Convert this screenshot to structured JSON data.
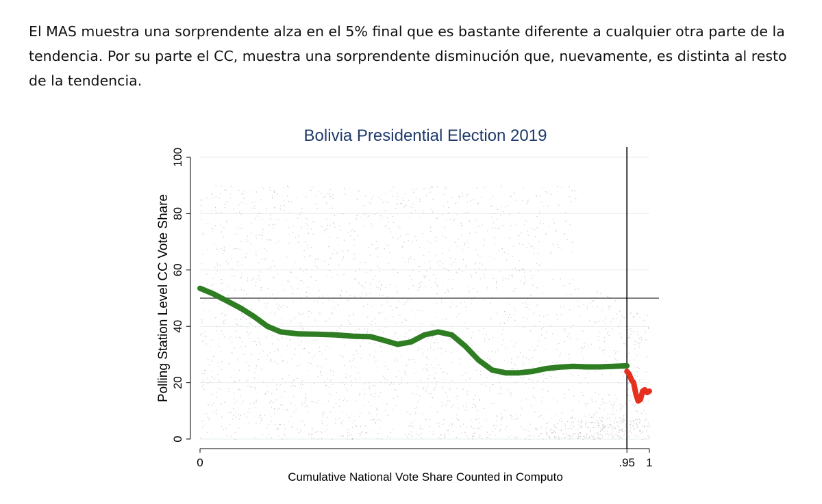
{
  "paragraph": "El MAS muestra una sorprendente alza en el 5% final que es bastante diferente a cualquier otra parte de la tendencia. Por su parte el CC, muestra una sorprendente disminución que, nuevamente, es distinta al resto de la tendencia.",
  "colors": {
    "title": "#1f3a6a",
    "scatter": "#9c9c9c",
    "trend_main": "#2e7d22",
    "trend_final": "#e53020",
    "reference_line": "#333333"
  },
  "chart_data": {
    "type": "scatter",
    "title": "Bolivia Presidential Election 2019",
    "xlabel": "Cumulative National Vote Share Counted in Computo",
    "ylabel": "Polling Station Level CC Vote Share",
    "xlim": [
      0,
      1
    ],
    "ylim": [
      0,
      100
    ],
    "x_ticks": [
      0,
      0.95,
      1
    ],
    "x_tick_labels": [
      "0",
      ".95",
      "1"
    ],
    "y_ticks": [
      0,
      20,
      40,
      60,
      80,
      100
    ],
    "y_tick_labels": [
      "0",
      "20",
      "40",
      "60",
      "80",
      "100"
    ],
    "grid": true,
    "reference_lines": {
      "horizontal_y": 50,
      "vertical_x": 0.95
    },
    "series": [
      {
        "x": [
          0,
          0.03,
          0.06,
          0.09,
          0.12,
          0.15,
          0.18,
          0.22,
          0.26,
          0.3,
          0.34,
          0.38,
          0.41,
          0.44,
          0.47,
          0.5,
          0.53,
          0.56,
          0.59,
          0.62,
          0.65,
          0.68,
          0.71,
          0.74,
          0.77,
          0.8,
          0.83,
          0.86,
          0.89,
          0.92,
          0.95
        ],
        "y": [
          53.5,
          51.5,
          49,
          46.5,
          43.5,
          40,
          38,
          37.3,
          37.2,
          37,
          36.5,
          36.3,
          35,
          33.6,
          34.5,
          37,
          38,
          37,
          33,
          28,
          24.5,
          23.5,
          23.5,
          24,
          25,
          25.5,
          25.8,
          25.6,
          25.6,
          25.8,
          26
        ]
      },
      {
        "x": [
          0.95,
          0.955,
          0.96,
          0.965,
          0.97,
          0.975,
          0.98,
          0.985,
          0.99,
          0.995,
          1.0
        ],
        "y": [
          24,
          23,
          21,
          20,
          16,
          13.5,
          14,
          17,
          17.5,
          16.5,
          17
        ]
      }
    ]
  }
}
